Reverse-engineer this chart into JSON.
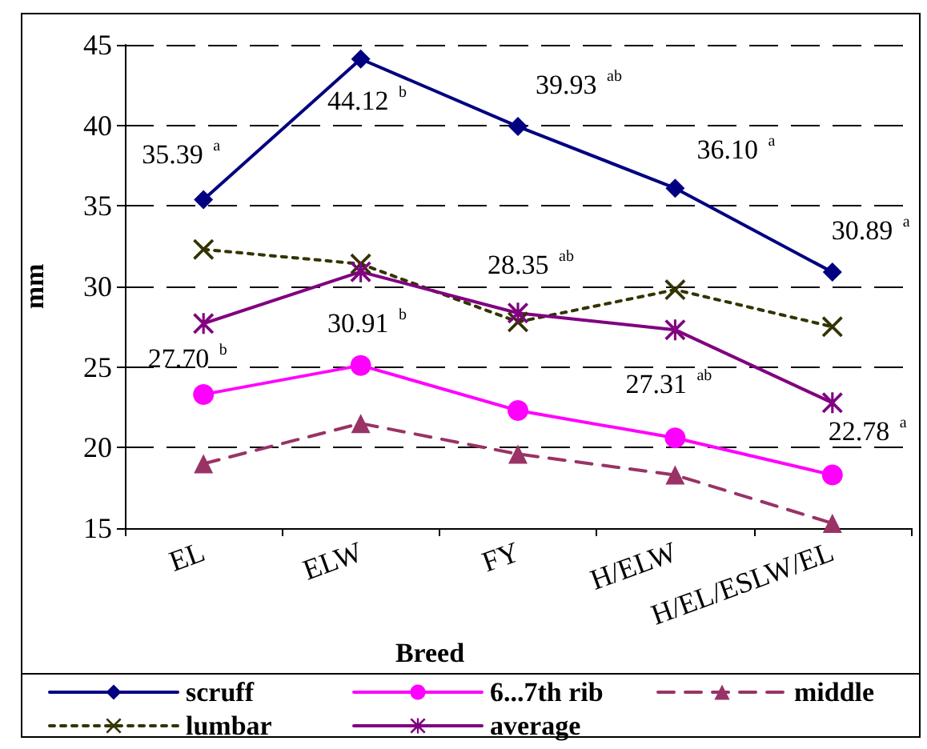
{
  "chart_data": {
    "type": "line",
    "xlabel": "Breed",
    "ylabel": "mm",
    "categories": [
      "EL",
      "ELW",
      "FY",
      "H/ELW",
      "H/EL/ESLW/EL"
    ],
    "ylim": [
      15,
      45
    ],
    "yticks": [
      15,
      20,
      25,
      30,
      35,
      40,
      45
    ],
    "grid": "y",
    "legend": "bottom",
    "series": [
      {
        "name": "scruff",
        "color": "#000080",
        "marker": "diamond",
        "line_style": "solid",
        "values": [
          35.39,
          44.12,
          39.93,
          36.1,
          30.89
        ],
        "value_labels": [
          "35.39 $^{a}$",
          "44.12 $^{b}$",
          "39.93 $^{ab}$",
          "36.10 $^{a}$",
          "30.89 $^{a}$"
        ]
      },
      {
        "name": "6...7th rib",
        "color": "#ff00ff",
        "marker": "circle",
        "line_style": "solid",
        "values": [
          23.3,
          25.1,
          22.3,
          20.6,
          18.3
        ]
      },
      {
        "name": "middle",
        "color": "#993366",
        "marker": "triangle",
        "line_style": "dashed",
        "values": [
          19.0,
          21.5,
          19.6,
          18.3,
          15.3
        ]
      },
      {
        "name": "lumbar",
        "color": "#333300",
        "marker": "cross",
        "line_style": "dotted",
        "values": [
          32.3,
          31.4,
          27.8,
          29.8,
          27.5
        ]
      },
      {
        "name": "average",
        "color": "#800080",
        "marker": "star",
        "line_style": "solid",
        "values": [
          27.7,
          30.91,
          28.35,
          27.31,
          22.78
        ],
        "value_labels": [
          "27.70 $^{b}$",
          "30.91 $^{b}$",
          "28.35 $^{ab}$",
          "27.31 $^{ab}$",
          "22.78 $^{a}$"
        ]
      }
    ]
  }
}
